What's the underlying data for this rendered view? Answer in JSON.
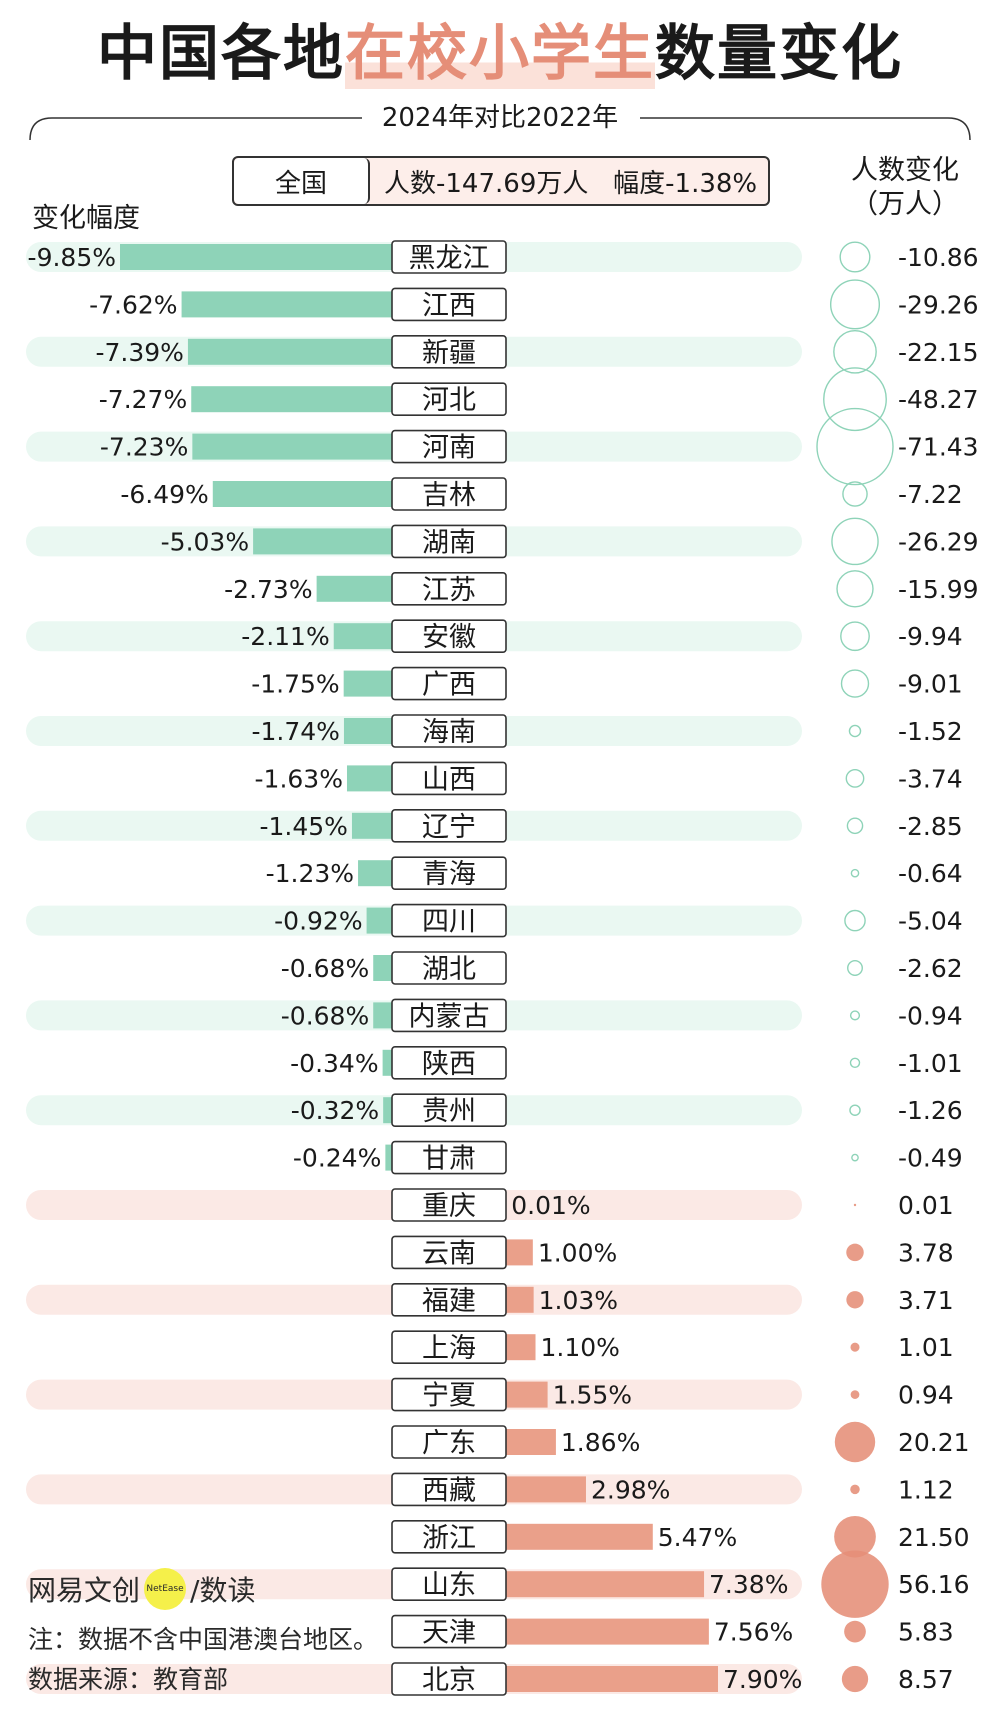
{
  "title": {
    "part1": "中国各地",
    "part2": "在校小学生",
    "part3": "数量变化"
  },
  "subtitle": "2024年对比2022年",
  "national": {
    "label": "全国",
    "value": "人数-147.69万人   幅度-1.38%"
  },
  "headers": {
    "left": "变化幅度",
    "right_line1": "人数变化",
    "right_line2": "（万人）"
  },
  "colors": {
    "negative": "#8ed3b8",
    "positive": "#eaa08a",
    "neg_band": "#eaf8f2",
    "pos_band": "#fbe9e5",
    "circle_neg": "#8ed3b8",
    "circle_pos": "#e58e78"
  },
  "chart_data": {
    "type": "bar",
    "title": "中国各地在校小学生数量变化",
    "subtitle": "2024年对比2022年",
    "xlabel": "变化幅度",
    "ylabel": "",
    "unit_pct": "%",
    "unit_count": "万人",
    "categories": [
      "黑龙江",
      "江西",
      "新疆",
      "河北",
      "河南",
      "吉林",
      "湖南",
      "江苏",
      "安徽",
      "广西",
      "海南",
      "山西",
      "辽宁",
      "青海",
      "四川",
      "湖北",
      "内蒙古",
      "陕西",
      "贵州",
      "甘肃",
      "重庆",
      "云南",
      "福建",
      "上海",
      "宁夏",
      "广东",
      "西藏",
      "浙江",
      "山东",
      "天津",
      "北京"
    ],
    "series": [
      {
        "name": "变化幅度",
        "values": [
          -9.85,
          -7.62,
          -7.39,
          -7.27,
          -7.23,
          -6.49,
          -5.03,
          -2.73,
          -2.11,
          -1.75,
          -1.74,
          -1.63,
          -1.45,
          -1.23,
          -0.92,
          -0.68,
          -0.68,
          -0.34,
          -0.32,
          -0.24,
          0.01,
          1.0,
          1.03,
          1.1,
          1.55,
          1.86,
          2.98,
          5.47,
          7.38,
          7.56,
          7.9
        ]
      },
      {
        "name": "人数变化",
        "values": [
          -10.86,
          -29.26,
          -22.15,
          -48.27,
          -71.43,
          -7.22,
          -26.29,
          -15.99,
          -9.94,
          -9.01,
          -1.52,
          -3.74,
          -2.85,
          -0.64,
          -5.04,
          -2.62,
          -0.94,
          -1.01,
          -1.26,
          -0.49,
          0.01,
          3.78,
          3.71,
          1.01,
          0.94,
          20.21,
          1.12,
          21.5,
          56.16,
          5.83,
          8.57
        ]
      }
    ],
    "pct_labels": [
      "-9.85%",
      "-7.62%",
      "-7.39%",
      "-7.27%",
      "-7.23%",
      "-6.49%",
      "-5.03%",
      "-2.73%",
      "-2.11%",
      "-1.75%",
      "-1.74%",
      "-1.63%",
      "-1.45%",
      "-1.23%",
      "-0.92%",
      "-0.68%",
      "-0.68%",
      "-0.34%",
      "-0.32%",
      "-0.24%",
      "0.01%",
      "1.00%",
      "1.03%",
      "1.10%",
      "1.55%",
      "1.86%",
      "2.98%",
      "5.47%",
      "7.38%",
      "7.56%",
      "7.90%"
    ],
    "count_labels": [
      "-10.86",
      "-29.26",
      "-22.15",
      "-48.27",
      "-71.43",
      "-7.22",
      "-26.29",
      "-15.99",
      "-9.94",
      "-9.01",
      "-1.52",
      "-3.74",
      "-2.85",
      "-0.64",
      "-5.04",
      "-2.62",
      "-0.94",
      "-1.01",
      "-1.26",
      "-0.49",
      "0.01",
      "3.78",
      "3.71",
      "1.01",
      "0.94",
      "20.21",
      "1.12",
      "21.50",
      "56.16",
      "5.83",
      "8.57"
    ]
  },
  "footer": {
    "brand": "网易文创",
    "brand_badge": "NetEase",
    "brand_suffix": "/数读",
    "note": "注：数据不含中国港澳台地区。",
    "source": "数据来源：教育部"
  }
}
